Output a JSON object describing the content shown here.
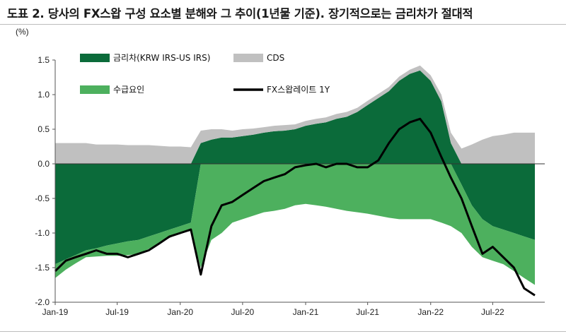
{
  "header": {
    "title": "도표 2. 당사의 FX스왑 구성 요소별 분해와 그 추이(1년물 기준). 장기적으로는 금리차가 절대적"
  },
  "chart_data": {
    "type": "area",
    "unit_label": "(%)",
    "ylim": [
      -2.0,
      1.5
    ],
    "yticks": [
      "1.5",
      "1.0",
      "0.5",
      "0.0",
      "-0.5",
      "-1.0",
      "-1.5",
      "-2.0"
    ],
    "xticks": [
      "Jan-19",
      "Jul-19",
      "Jan-20",
      "Jul-20",
      "Jan-21",
      "Jul-21",
      "Jan-22",
      "Jul-22"
    ],
    "legend_placement": "top-left",
    "x": [
      "2019-01",
      "2019-02",
      "2019-03",
      "2019-04",
      "2019-05",
      "2019-06",
      "2019-07",
      "2019-08",
      "2019-09",
      "2019-10",
      "2019-11",
      "2019-12",
      "2020-01",
      "2020-02",
      "2020-03",
      "2020-04",
      "2020-05",
      "2020-06",
      "2020-07",
      "2020-08",
      "2020-09",
      "2020-10",
      "2020-11",
      "2020-12",
      "2021-01",
      "2021-02",
      "2021-03",
      "2021-04",
      "2021-05",
      "2021-06",
      "2021-07",
      "2021-08",
      "2021-09",
      "2021-10",
      "2021-11",
      "2021-12",
      "2022-01",
      "2022-02",
      "2022-03",
      "2022-04",
      "2022-05",
      "2022-06",
      "2022-07",
      "2022-08",
      "2022-09",
      "2022-10",
      "2022-11"
    ],
    "series": [
      {
        "name": "금리차(KRW IRS-US IRS)",
        "color": "#0b6b3a",
        "values": [
          -1.45,
          -1.38,
          -1.32,
          -1.25,
          -1.22,
          -1.18,
          -1.15,
          -1.12,
          -1.1,
          -1.05,
          -1.0,
          -0.95,
          -0.9,
          -0.85,
          0.3,
          0.35,
          0.38,
          0.38,
          0.4,
          0.42,
          0.45,
          0.47,
          0.48,
          0.5,
          0.55,
          0.58,
          0.6,
          0.65,
          0.68,
          0.75,
          0.85,
          0.95,
          1.05,
          1.2,
          1.3,
          1.35,
          1.2,
          0.9,
          0.3,
          -0.3,
          -0.6,
          -0.8,
          -0.9,
          -0.95,
          -1.0,
          -1.05,
          -1.1
        ]
      },
      {
        "name": "CDS",
        "color": "#c0c0c0",
        "values": [
          0.3,
          0.3,
          0.3,
          0.3,
          0.28,
          0.28,
          0.28,
          0.27,
          0.27,
          0.27,
          0.26,
          0.25,
          0.25,
          0.24,
          0.18,
          0.15,
          0.12,
          0.1,
          0.1,
          0.09,
          0.08,
          0.08,
          0.08,
          0.07,
          0.07,
          0.07,
          0.07,
          0.07,
          0.07,
          0.06,
          0.06,
          0.06,
          0.06,
          0.06,
          0.06,
          0.07,
          0.08,
          0.1,
          0.15,
          0.22,
          0.28,
          0.35,
          0.4,
          0.42,
          0.45,
          0.45,
          0.45
        ]
      },
      {
        "name": "수급요인",
        "color": "#4db05e",
        "values": [
          -0.2,
          -0.15,
          -0.12,
          -0.1,
          -0.12,
          -0.15,
          -0.18,
          -0.2,
          -0.2,
          -0.18,
          -0.15,
          -0.12,
          -0.1,
          -0.12,
          -1.5,
          -1.1,
          -1.0,
          -0.85,
          -0.8,
          -0.75,
          -0.7,
          -0.68,
          -0.65,
          -0.6,
          -0.58,
          -0.6,
          -0.62,
          -0.65,
          -0.68,
          -0.7,
          -0.72,
          -0.75,
          -0.78,
          -0.8,
          -0.8,
          -0.8,
          -0.8,
          -0.85,
          -0.9,
          -0.7,
          -0.6,
          -0.55,
          -0.5,
          -0.5,
          -0.55,
          -0.6,
          -0.65
        ]
      },
      {
        "name": "FX스왑레이트 1Y",
        "color": "#000000",
        "values": [
          -1.55,
          -1.4,
          -1.35,
          -1.3,
          -1.25,
          -1.3,
          -1.3,
          -1.35,
          -1.3,
          -1.25,
          -1.15,
          -1.05,
          -1.0,
          -0.95,
          -1.6,
          -0.9,
          -0.6,
          -0.55,
          -0.45,
          -0.35,
          -0.25,
          -0.2,
          -0.15,
          -0.05,
          -0.02,
          0.0,
          -0.05,
          0.0,
          0.0,
          -0.05,
          -0.05,
          0.05,
          0.3,
          0.5,
          0.6,
          0.65,
          0.45,
          0.1,
          -0.2,
          -0.5,
          -0.9,
          -1.3,
          -1.2,
          -1.35,
          -1.5,
          -1.8,
          -1.9
        ]
      }
    ]
  }
}
